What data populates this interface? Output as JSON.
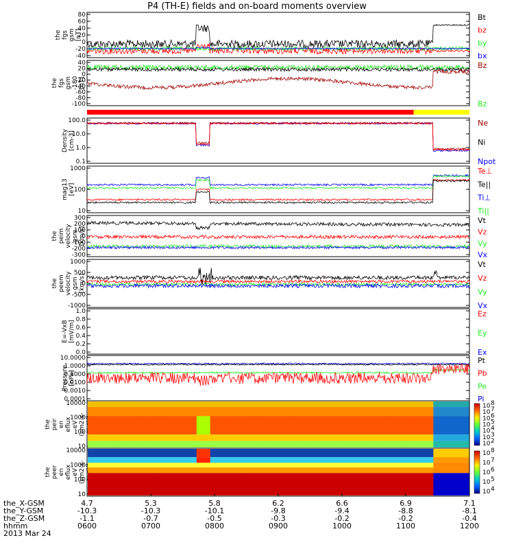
{
  "title": "P4 (TH-E) fields and on-board moments overview",
  "colors": {
    "black": "#000000",
    "red": "#ff0000",
    "darkred": "#a00000",
    "green": "#22ee22",
    "blue": "#0000ff",
    "yellow": "#ffff00"
  },
  "chart_data": [
    {
      "id": "fgs",
      "type": "line",
      "ylabel": [
        "the",
        "fgs",
        "gsm",
        "[nT]"
      ],
      "yticks": [
        "80",
        "60",
        "40",
        "20",
        "0",
        "-20",
        "-40"
      ],
      "legend": [
        {
          "name": "Bt",
          "color": "#000000"
        },
        {
          "name": "bz",
          "color": "#ff0000"
        },
        {
          "name": "by",
          "color": "#22ee22"
        },
        {
          "name": "bx",
          "color": "#0000ff"
        }
      ]
    },
    {
      "id": "fgs_deg",
      "type": "line",
      "ylabel": [
        "the",
        "fgs",
        "gsm",
        "-180",
        "[nT]"
      ],
      "yticks": [
        "40",
        "20",
        "0",
        "-20",
        "-40",
        "-60",
        "-80",
        "-100"
      ],
      "legend": [
        {
          "name": "Bz",
          "color": "#a00000"
        },
        {
          "name": "Bz",
          "color": "#22ee22"
        }
      ]
    },
    {
      "id": "mode_bar",
      "type": "bar",
      "segments": [
        {
          "from": 4.7,
          "to": 6.75,
          "color": "#ff0000"
        },
        {
          "from": 6.75,
          "to": 7.1,
          "color": "#ffff00"
        }
      ]
    },
    {
      "id": "density",
      "type": "line",
      "scale": "log",
      "ylabel": [
        "Density",
        "[cm-3]"
      ],
      "yticks": [
        "100.0",
        "10.0",
        "1.0",
        "0.1"
      ],
      "legend": [
        {
          "name": "Ne",
          "color": "#a00000"
        },
        {
          "name": "Ni",
          "color": "#000000"
        },
        {
          "name": "Npot",
          "color": "#0000ff"
        }
      ]
    },
    {
      "id": "temp",
      "type": "line",
      "scale": "log",
      "ylabel": [
        "mag13",
        "[eV]"
      ],
      "yticks": [
        "1000",
        "100",
        "10"
      ],
      "legend": [
        {
          "name": "Te⊥",
          "color": "#ff0000"
        },
        {
          "name": "Te||",
          "color": "#000000"
        },
        {
          "name": "Ti⊥",
          "color": "#0000ff"
        },
        {
          "name": "Ti||",
          "color": "#22ee22"
        }
      ]
    },
    {
      "id": "vel_peim",
      "type": "line",
      "ylabel": [
        "the",
        "peim",
        "velocity",
        "gsm",
        "[km/s]"
      ],
      "yticks": [
        "300",
        "200",
        "100",
        "0",
        "-100",
        "-200",
        "-300"
      ],
      "legend": [
        {
          "name": "Vt",
          "color": "#000000"
        },
        {
          "name": "Vz",
          "color": "#ff0000"
        },
        {
          "name": "Vy",
          "color": "#22ee22"
        },
        {
          "name": "Vx",
          "color": "#0000ff"
        }
      ]
    },
    {
      "id": "vel_peem",
      "type": "line",
      "ylabel": [
        "the",
        "peem",
        "velocity",
        "gsm",
        "[km/s]"
      ],
      "yticks": [
        "1000",
        "500",
        "0",
        "-500",
        "-1000"
      ],
      "legend": [
        {
          "name": "Vt",
          "color": "#000000"
        },
        {
          "name": "Vz",
          "color": "#ff0000"
        },
        {
          "name": "Vy",
          "color": "#22ee22"
        },
        {
          "name": "Vx",
          "color": "#0000ff"
        }
      ]
    },
    {
      "id": "efield",
      "type": "line",
      "ylabel": [
        "E=-VxB",
        "[mV/m]"
      ],
      "yticks": [
        "1.0",
        "0.8",
        "0.6",
        "0.4",
        "0.2",
        "0.0"
      ],
      "legend": [
        {
          "name": "Ez",
          "color": "#ff0000"
        },
        {
          "name": "Ey",
          "color": "#22ee22"
        },
        {
          "name": "Ex",
          "color": "#0000ff"
        }
      ]
    },
    {
      "id": "pressure",
      "type": "line",
      "scale": "log",
      "ylabel": [
        "Pressure",
        "[nPa]"
      ],
      "yticks": [
        "10.0000",
        "1.0000",
        "0.1000",
        "0.0100",
        "0.0010",
        "0.0001"
      ],
      "legend": [
        {
          "name": "Pt",
          "color": "#000000"
        },
        {
          "name": "Pb",
          "color": "#ff0000"
        },
        {
          "name": "Pe",
          "color": "#22ee22"
        },
        {
          "name": "Pi",
          "color": "#0000ff"
        }
      ]
    },
    {
      "id": "peir",
      "type": "heatmap",
      "ylabel": [
        "the",
        "peir",
        "en",
        "eflux",
        "eV",
        "(cm2-s-",
        "sr-eV)"
      ],
      "yticks": [
        "10000",
        "1000",
        "100",
        "10"
      ],
      "colorbar": [
        "10",
        "8",
        "10",
        "7",
        "10",
        "6",
        "10",
        "5",
        "10",
        "4",
        "10",
        "3",
        "10",
        "2"
      ]
    },
    {
      "id": "peer",
      "type": "heatmap",
      "ylabel": [
        "the",
        "peer",
        "en",
        "eflux",
        "eV",
        "(cm2-s-",
        "sr-eV)"
      ],
      "yticks": [
        "10000",
        "1000",
        "100",
        "10"
      ],
      "colorbar": [
        "10",
        "8",
        "10",
        "7",
        "10",
        "6",
        "10",
        "5",
        "10",
        "4"
      ]
    }
  ],
  "x_axis": {
    "rows": [
      {
        "label": "the_X-GSM",
        "values": [
          "4.7",
          "5.3",
          "5.8",
          "6.2",
          "6.6",
          "6.9",
          "7.1"
        ]
      },
      {
        "label": "the_Y-GSM",
        "values": [
          "-10.3",
          "-10.3",
          "-10.1",
          "-9.8",
          "-9.4",
          "-8.8",
          "-8.1"
        ]
      },
      {
        "label": "the_Z-GSM",
        "values": [
          "-1.1",
          "-0.7",
          "-0.5",
          "-0.3",
          "-0.2",
          "-0.2",
          "-0.4"
        ]
      },
      {
        "label": "hhmm",
        "values": [
          "0600",
          "0700",
          "0800",
          "0900",
          "1000",
          "1100",
          "1200"
        ]
      }
    ],
    "date": "2013 Mar 24"
  }
}
